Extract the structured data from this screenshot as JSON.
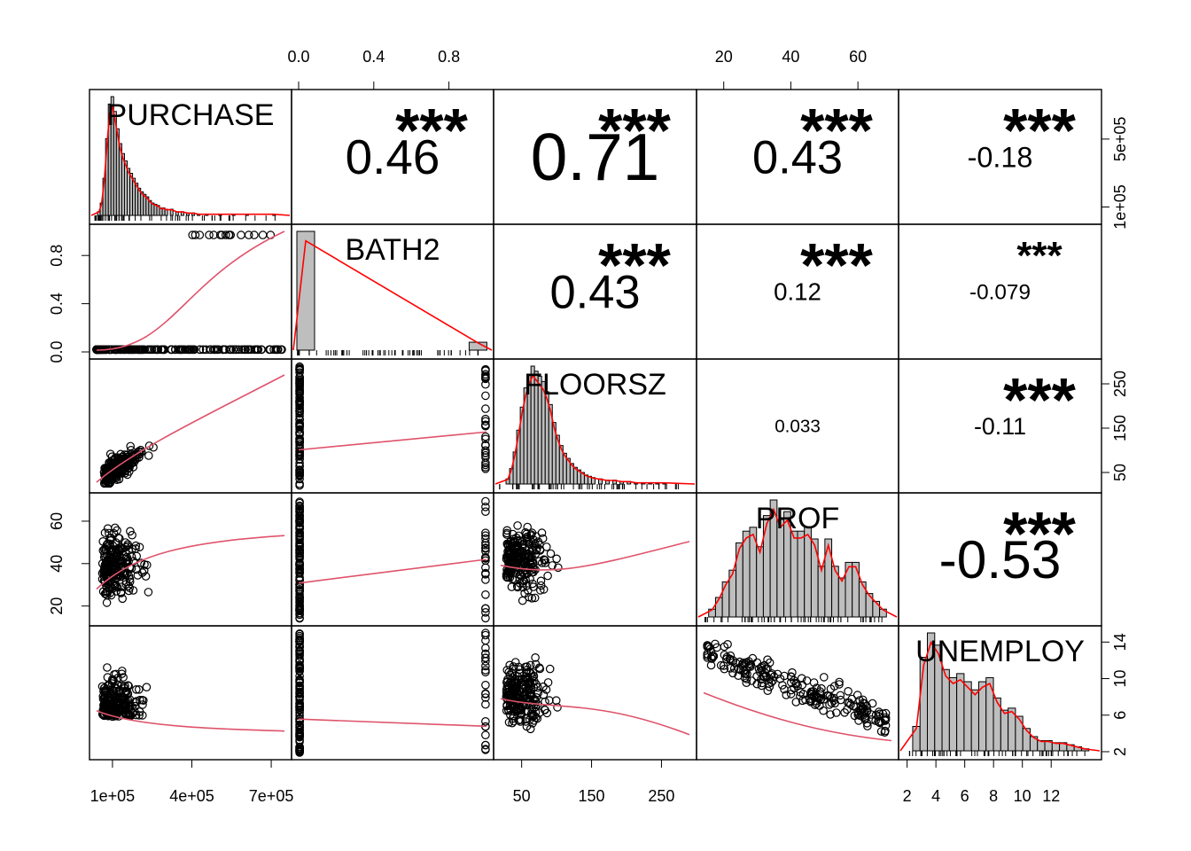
{
  "chart_data": {
    "type": "scatter",
    "title": "",
    "variables": [
      "PURCHASE",
      "BATH2",
      "FLOORSZ",
      "PROF",
      "UNEMPLOY"
    ],
    "accent_color": "#DF536B",
    "hist_fill": "#BEBEBE",
    "density_color": "#FF0000",
    "correlations": [
      {
        "row": 0,
        "col": 1,
        "value": "0.46",
        "stars": "***"
      },
      {
        "row": 0,
        "col": 2,
        "value": "0.71",
        "stars": "***"
      },
      {
        "row": 0,
        "col": 3,
        "value": "0.43",
        "stars": "***"
      },
      {
        "row": 0,
        "col": 4,
        "value": "-0.18",
        "stars": "***"
      },
      {
        "row": 1,
        "col": 2,
        "value": "0.43",
        "stars": "***"
      },
      {
        "row": 1,
        "col": 3,
        "value": "0.12",
        "stars": "***"
      },
      {
        "row": 1,
        "col": 4,
        "value": "-0.079",
        "stars": "***"
      },
      {
        "row": 2,
        "col": 3,
        "value": "0.033",
        "stars": ""
      },
      {
        "row": 2,
        "col": 4,
        "value": "-0.11",
        "stars": "***"
      },
      {
        "row": 3,
        "col": 4,
        "value": "-0.53",
        "stars": "***"
      }
    ],
    "axes": {
      "top": [
        {
          "col": 1,
          "ticks": [
            {
              "v": 0.0,
              "label": "0.0"
            },
            {
              "v": 0.4,
              "label": "0.4"
            },
            {
              "v": 0.8,
              "label": "0.8"
            }
          ],
          "range": [
            0,
            1
          ]
        },
        {
          "col": 3,
          "ticks": [
            {
              "v": 20,
              "label": "20"
            },
            {
              "v": 40,
              "label": "40"
            },
            {
              "v": 60,
              "label": "60"
            }
          ],
          "range": [
            14,
            70
          ]
        }
      ],
      "bottom": [
        {
          "col": 0,
          "ticks": [
            {
              "v": 100000,
              "label": "1e+05"
            },
            {
              "v": 400000,
              "label": "4e+05"
            },
            {
              "v": 700000,
              "label": "7e+05"
            }
          ],
          "range": [
            40000,
            750000
          ]
        },
        {
          "col": 2,
          "ticks": [
            {
              "v": 50,
              "label": "50"
            },
            {
              "v": 150,
              "label": "150"
            },
            {
              "v": 250,
              "label": "250"
            }
          ],
          "range": [
            20,
            290
          ]
        },
        {
          "col": 4,
          "ticks": [
            {
              "v": 2,
              "label": "2"
            },
            {
              "v": 4,
              "label": "4"
            },
            {
              "v": 6,
              "label": "6"
            },
            {
              "v": 8,
              "label": "8"
            },
            {
              "v": 10,
              "label": "10"
            },
            {
              "v": 12,
              "label": "12"
            }
          ],
          "range": [
            1.9,
            15
          ]
        }
      ],
      "left": [
        {
          "row": 1,
          "ticks": [
            {
              "v": 0.0,
              "label": "0.0"
            },
            {
              "v": 0.4,
              "label": "0.4"
            },
            {
              "v": 0.8,
              "label": "0.8"
            }
          ],
          "range": [
            0,
            1
          ]
        },
        {
          "row": 3,
          "ticks": [
            {
              "v": 20,
              "label": "20"
            },
            {
              "v": 40,
              "label": "40"
            },
            {
              "v": 60,
              "label": "60"
            }
          ],
          "range": [
            14,
            70
          ]
        }
      ],
      "right": [
        {
          "row": 0,
          "ticks": [
            {
              "v": 100000,
              "label": "1e+05"
            },
            {
              "v": 500000,
              "label": "5e+05"
            }
          ],
          "range": [
            40000,
            750000
          ]
        },
        {
          "row": 2,
          "ticks": [
            {
              "v": 50,
              "label": "50"
            },
            {
              "v": 150,
              "label": "150"
            },
            {
              "v": 250,
              "label": "250"
            }
          ],
          "range": [
            20,
            290
          ]
        },
        {
          "row": 4,
          "ticks": [
            {
              "v": 2,
              "label": "2"
            },
            {
              "v": 6,
              "label": "6"
            },
            {
              "v": 10,
              "label": "10"
            },
            {
              "v": 14,
              "label": "14"
            }
          ],
          "range": [
            1.9,
            15
          ]
        }
      ]
    },
    "histograms": [
      {
        "var": "PURCHASE",
        "range": [
          40000,
          750000
        ],
        "bins": [
          [
            50000,
            3
          ],
          [
            60000,
            10
          ],
          [
            70000,
            30
          ],
          [
            80000,
            62
          ],
          [
            90000,
            90
          ],
          [
            100000,
            96
          ],
          [
            110000,
            84
          ],
          [
            120000,
            70
          ],
          [
            130000,
            58
          ],
          [
            140000,
            50
          ],
          [
            150000,
            44
          ],
          [
            160000,
            38
          ],
          [
            170000,
            34
          ],
          [
            180000,
            30
          ],
          [
            190000,
            26
          ],
          [
            200000,
            22
          ],
          [
            210000,
            19
          ],
          [
            220000,
            17
          ],
          [
            230000,
            15
          ],
          [
            240000,
            12
          ],
          [
            250000,
            10
          ],
          [
            260000,
            9
          ],
          [
            270000,
            8
          ],
          [
            280000,
            6
          ],
          [
            290000,
            6
          ],
          [
            300000,
            5
          ],
          [
            320000,
            5
          ],
          [
            340000,
            3
          ],
          [
            360000,
            3
          ],
          [
            380000,
            2
          ],
          [
            400000,
            2
          ],
          [
            420000,
            1
          ],
          [
            450000,
            1
          ],
          [
            500000,
            1
          ],
          [
            550000,
            1
          ],
          [
            600000,
            1
          ],
          [
            700000,
            1
          ]
        ]
      },
      {
        "var": "BATH2",
        "range": [
          0,
          1
        ],
        "bins": [
          [
            0.0,
            90
          ],
          [
            0.9,
            6
          ]
        ]
      },
      {
        "var": "FLOORSZ",
        "range": [
          20,
          290
        ],
        "bins": [
          [
            30,
            4
          ],
          [
            35,
            12
          ],
          [
            40,
            25
          ],
          [
            45,
            42
          ],
          [
            50,
            60
          ],
          [
            55,
            75
          ],
          [
            60,
            85
          ],
          [
            65,
            92
          ],
          [
            70,
            88
          ],
          [
            75,
            84
          ],
          [
            80,
            80
          ],
          [
            85,
            72
          ],
          [
            90,
            62
          ],
          [
            95,
            48
          ],
          [
            100,
            38
          ],
          [
            105,
            30
          ],
          [
            110,
            24
          ],
          [
            115,
            20
          ],
          [
            120,
            16
          ],
          [
            125,
            13
          ],
          [
            130,
            11
          ],
          [
            135,
            9
          ],
          [
            140,
            7
          ],
          [
            145,
            6
          ],
          [
            150,
            5
          ],
          [
            160,
            4
          ],
          [
            170,
            3
          ],
          [
            180,
            3
          ],
          [
            190,
            2
          ],
          [
            200,
            2
          ],
          [
            210,
            1
          ],
          [
            220,
            1
          ],
          [
            230,
            1
          ],
          [
            240,
            1
          ],
          [
            250,
            1
          ]
        ]
      },
      {
        "var": "PROF",
        "range": [
          14,
          70
        ],
        "bins": [
          [
            16,
            4
          ],
          [
            18,
            10
          ],
          [
            20,
            18
          ],
          [
            22,
            24
          ],
          [
            24,
            38
          ],
          [
            26,
            44
          ],
          [
            28,
            46
          ],
          [
            30,
            36
          ],
          [
            32,
            52
          ],
          [
            34,
            60
          ],
          [
            36,
            50
          ],
          [
            38,
            54
          ],
          [
            40,
            44
          ],
          [
            42,
            44
          ],
          [
            44,
            46
          ],
          [
            46,
            40
          ],
          [
            48,
            26
          ],
          [
            50,
            40
          ],
          [
            52,
            26
          ],
          [
            54,
            20
          ],
          [
            56,
            28
          ],
          [
            58,
            28
          ],
          [
            60,
            18
          ],
          [
            62,
            12
          ],
          [
            64,
            8
          ],
          [
            66,
            4
          ]
        ]
      },
      {
        "var": "UNEMPLOY",
        "range": [
          1.9,
          15
        ],
        "bins": [
          [
            2.5,
            12
          ],
          [
            3.0,
            46
          ],
          [
            3.5,
            58
          ],
          [
            4.0,
            52
          ],
          [
            4.5,
            40
          ],
          [
            5.0,
            36
          ],
          [
            5.5,
            38
          ],
          [
            6.0,
            34
          ],
          [
            6.5,
            30
          ],
          [
            7.0,
            34
          ],
          [
            7.5,
            36
          ],
          [
            8.0,
            26
          ],
          [
            8.5,
            20
          ],
          [
            9.0,
            21
          ],
          [
            9.5,
            17
          ],
          [
            10.0,
            11
          ],
          [
            10.5,
            7
          ],
          [
            11.0,
            5
          ],
          [
            11.5,
            5
          ],
          [
            12.0,
            4
          ],
          [
            12.5,
            4
          ],
          [
            13.0,
            3
          ],
          [
            13.5,
            2
          ],
          [
            14.0,
            1
          ]
        ]
      }
    ]
  }
}
